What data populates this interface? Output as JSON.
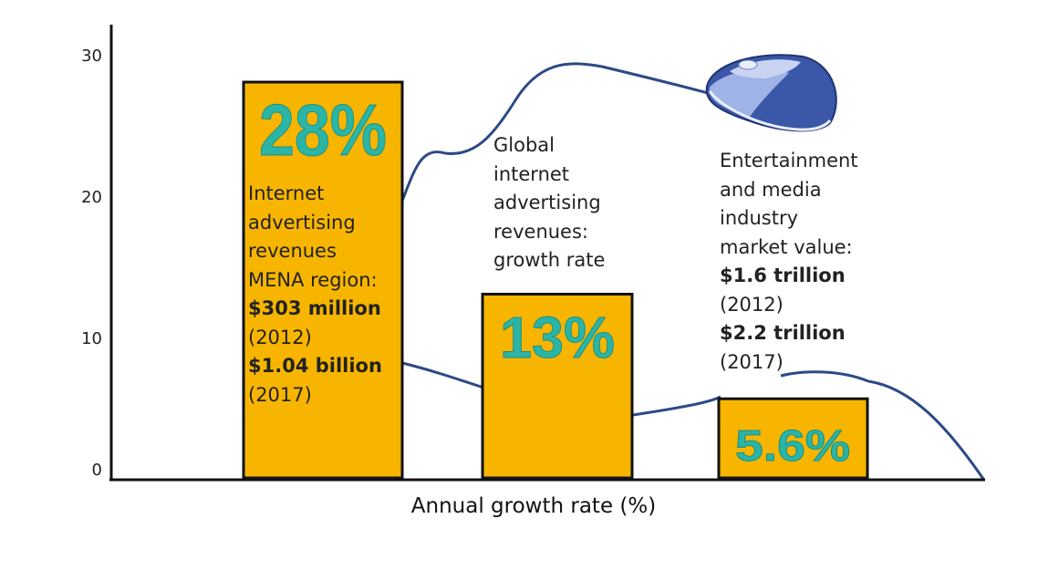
{
  "chart_data": {
    "type": "bar",
    "xlabel": "Annual growth rate (%)",
    "ylim": [
      0,
      30
    ],
    "yticks": [
      0,
      10,
      20,
      30
    ],
    "bars": [
      {
        "value": 28,
        "label": "28%",
        "lines": [
          {
            "text": "Internet",
            "bold": false
          },
          {
            "text": "advertising",
            "bold": false
          },
          {
            "text": "revenues",
            "bold": false
          },
          {
            "text": "MENA region:",
            "bold": false
          },
          {
            "text": "$303 million",
            "bold": true
          },
          {
            "text": "(2012)",
            "bold": false
          },
          {
            "text": "$1.04 billion",
            "bold": true
          },
          {
            "text": "(2017)",
            "bold": false
          }
        ]
      },
      {
        "value": 13,
        "label": "13%",
        "lines": [
          {
            "text": "Global",
            "bold": false
          },
          {
            "text": "internet",
            "bold": false
          },
          {
            "text": "advertising",
            "bold": false
          },
          {
            "text": "revenues:",
            "bold": false
          },
          {
            "text": "growth rate",
            "bold": false
          }
        ]
      },
      {
        "value": 5.6,
        "label": "5.6%",
        "lines": [
          {
            "text": "Entertainment",
            "bold": false
          },
          {
            "text": "and media",
            "bold": false
          },
          {
            "text": "industry",
            "bold": false
          },
          {
            "text": "market value:",
            "bold": false
          },
          {
            "text": "$1.6 trillion",
            "bold": true
          },
          {
            "text": "(2012)",
            "bold": false
          },
          {
            "text": "$2.2 trillion",
            "bold": true
          },
          {
            "text": "(2017)",
            "bold": false
          }
        ]
      }
    ],
    "grid": false,
    "colors": {
      "bar": "#f7b500",
      "bar_outline": "#111111",
      "value_label": "#2bb5a6",
      "cable": "#2b4a86",
      "mouse": "#4a63b8"
    }
  }
}
